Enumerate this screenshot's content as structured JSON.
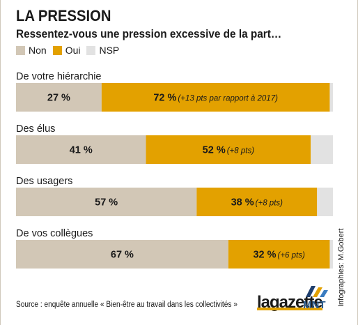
{
  "title": "LA PRESSION",
  "subtitle": "Ressentez-vous une pression excessive de la part…",
  "colors": {
    "non": "#d2c7b6",
    "oui": "#e3a100",
    "nsp": "#e2e2e2",
    "text": "#1a1a1a"
  },
  "chart_data": {
    "type": "bar",
    "orientation": "horizontal",
    "stacked": true,
    "legend_position": "top-left",
    "xlim": [
      0,
      100
    ],
    "categories": [
      "De votre hiérarchie",
      "Des élus",
      "Des usagers",
      "De vos collègues"
    ],
    "series": [
      {
        "name": "Non",
        "values": [
          27,
          41,
          57,
          67
        ],
        "color": "#d2c7b6",
        "labels": [
          "27 %",
          "41 %",
          "57 %",
          "67 %"
        ],
        "notes": [
          "",
          "",
          "",
          ""
        ]
      },
      {
        "name": "Oui",
        "values": [
          72,
          52,
          38,
          32
        ],
        "color": "#e3a100",
        "labels": [
          "72 %",
          "52 %",
          "38 %",
          "32 %"
        ],
        "notes": [
          "(+13 pts par rapport à 2017)",
          "(+8 pts)",
          "(+8 pts)",
          "(+6 pts)"
        ]
      },
      {
        "name": "NSP",
        "values": [
          1,
          7,
          5,
          1
        ],
        "color": "#e2e2e2",
        "labels": [
          "",
          "",
          "",
          ""
        ],
        "notes": [
          "",
          "",
          "",
          ""
        ]
      }
    ]
  },
  "footer": {
    "source": "Source : enquête annuelle « Bien-être au travail dans les collectivités »",
    "credit": "Infographies: M.Gobert",
    "logo_gazette": "lagazette",
    "logo_mnt": "MNT"
  }
}
